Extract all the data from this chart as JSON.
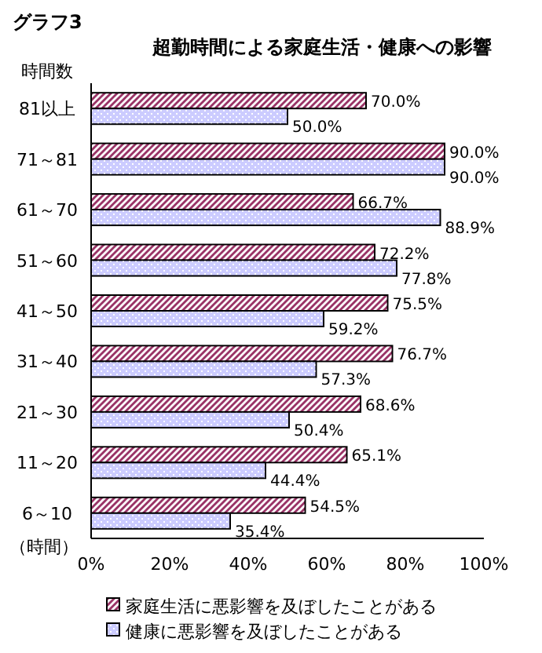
{
  "chart_data": {
    "type": "bar",
    "orientation": "horizontal",
    "title": "グラフ3",
    "subtitle": "超勤時間による家庭生活・健康への影響",
    "ylabel": "時間数",
    "annotations": [
      "（時間）"
    ],
    "categories": [
      "81以上",
      "71～81",
      "61～70",
      "51～60",
      "41～50",
      "31～40",
      "21～30",
      "11～20",
      "6～10"
    ],
    "series": [
      {
        "name": "家庭生活に悪影響を及ぼしたことがある",
        "color": "#993366",
        "values": [
          70.0,
          90.0,
          66.7,
          72.2,
          75.5,
          76.7,
          68.6,
          65.1,
          54.5
        ],
        "value_labels": [
          "70.0%",
          "90.0%",
          "66.7%",
          "72.2%",
          "75.5%",
          "76.7%",
          "68.6%",
          "65.1%",
          "54.5%"
        ]
      },
      {
        "name": "健康に悪影響を及ぼしたことがある",
        "color": "#ccccff",
        "values": [
          50.0,
          90.0,
          88.9,
          77.8,
          59.2,
          57.3,
          50.4,
          44.4,
          35.4
        ],
        "value_labels": [
          "50.0%",
          "90.0%",
          "88.9%",
          "77.8%",
          "59.2%",
          "57.3%",
          "50.4%",
          "44.4%",
          "35.4%"
        ]
      }
    ],
    "xlim": [
      0,
      100
    ],
    "xticks": [
      {
        "value": 0,
        "label": "0%"
      },
      {
        "value": 20,
        "label": "20%"
      },
      {
        "value": 40,
        "label": "40%"
      },
      {
        "value": 60,
        "label": "60%"
      },
      {
        "value": 80,
        "label": "80%"
      },
      {
        "value": 100,
        "label": "100%"
      }
    ],
    "legend": "bottom",
    "grid": false
  }
}
